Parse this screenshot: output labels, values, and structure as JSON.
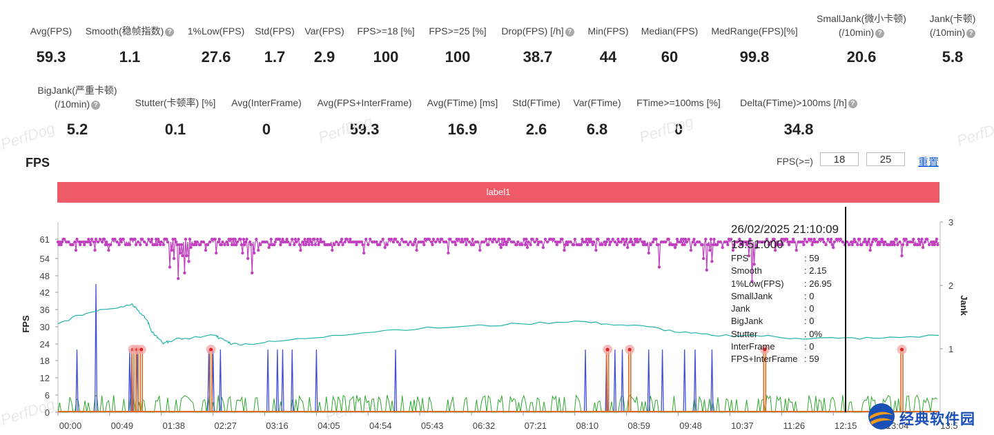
{
  "stats_row1": [
    {
      "label": "Avg(FPS)",
      "value": "59.3",
      "help": false
    },
    {
      "label": "Smooth(稳帧指数)",
      "value": "1.1",
      "help": true
    },
    {
      "label": "1%Low(FPS)",
      "value": "27.6",
      "help": false
    },
    {
      "label": "Std(FPS)",
      "value": "1.7",
      "help": false
    },
    {
      "label": "Var(FPS)",
      "value": "2.9",
      "help": false
    },
    {
      "label": "FPS>=18 [%]",
      "value": "100",
      "help": false
    },
    {
      "label": "FPS>=25 [%]",
      "value": "100",
      "help": false
    },
    {
      "label": "Drop(FPS) [/h]",
      "value": "38.7",
      "help": true
    },
    {
      "label": "Min(FPS)",
      "value": "44",
      "help": false
    },
    {
      "label": "Median(FPS)",
      "value": "60",
      "help": false
    },
    {
      "label": "MedRange(FPS)[%]",
      "value": "99.8",
      "help": false
    },
    {
      "label": "SmallJank(微小卡顿)",
      "label2": "(/10min)",
      "value": "20.6",
      "help": true
    },
    {
      "label": "Jank(卡顿)",
      "label2": "(/10min)",
      "value": "5.8",
      "help": true
    }
  ],
  "stats_row2": [
    {
      "label": "BigJank(严重卡顿)",
      "label2": "(/10min)",
      "value": "5.2",
      "help": true
    },
    {
      "label": "Stutter(卡顿率) [%]",
      "value": "0.1",
      "help": false
    },
    {
      "label": "Avg(InterFrame)",
      "value": "0",
      "help": false
    },
    {
      "label": "Avg(FPS+InterFrame)",
      "value": "59.3",
      "help": false
    },
    {
      "label": "Avg(FTime) [ms]",
      "value": "16.9",
      "help": false
    },
    {
      "label": "Std(FTime)",
      "value": "2.6",
      "help": false
    },
    {
      "label": "Var(FTime)",
      "value": "6.8",
      "help": false
    },
    {
      "label": "FTime>=100ms [%]",
      "value": "0",
      "help": false
    },
    {
      "label": "Delta(FTime)>100ms [/h]",
      "value": "34.8",
      "help": true
    }
  ],
  "watermark": "PerfDog",
  "section_title": "FPS",
  "threshold": {
    "label": "FPS(>=)",
    "value1": "18",
    "value2": "25",
    "reset": "重置"
  },
  "label_bar": "label1",
  "tooltip": {
    "timestamp": "26/02/2025 21:10:09",
    "time": "13:51:000",
    "rows": [
      {
        "k": "FPS",
        "v": ": 59"
      },
      {
        "k": "Smooth",
        "v": ": 2.15"
      },
      {
        "k": "1%Low(FPS)",
        "v": ": 26.95"
      },
      {
        "k": "SmallJank",
        "v": ": 0"
      },
      {
        "k": "Jank",
        "v": ": 0"
      },
      {
        "k": "BigJank",
        "v": ": 0"
      },
      {
        "k": "Stutter",
        "v": ": 0%"
      },
      {
        "k": "InterFrame",
        "v": ": 0"
      },
      {
        "k": "FPS+InterFrame",
        "v": ": 59"
      }
    ]
  },
  "logo_text": "经典软件园",
  "chart_data": {
    "type": "line",
    "xlabel": "",
    "ylabel": "FPS",
    "y2label": "Jank",
    "x_unit": "seconds",
    "xlim": [
      0,
      835
    ],
    "ylim": [
      0,
      64
    ],
    "y2lim": [
      0,
      3
    ],
    "y_ticks": [
      0,
      6,
      12,
      18,
      24,
      30,
      36,
      42,
      48,
      54,
      61
    ],
    "y2_ticks": [
      1,
      2,
      3
    ],
    "x_ticks": [
      "00:00",
      "00:49",
      "01:38",
      "02:27",
      "03:16",
      "04:05",
      "04:54",
      "05:43",
      "06:32",
      "07:21",
      "08:10",
      "08:59",
      "09:48",
      "10:37",
      "11:26",
      "12:15",
      "13:04",
      "13:5"
    ],
    "cursor_time": "13:51",
    "series": [
      {
        "name": "FPS",
        "color": "#c040c0",
        "baseline": 60,
        "dips": [
          [
            5,
            61
          ],
          [
            13,
            59
          ],
          [
            17,
            57
          ],
          [
            35,
            57
          ],
          [
            48,
            57
          ],
          [
            62,
            61
          ],
          [
            95,
            61
          ],
          [
            106,
            51
          ],
          [
            108,
            57
          ],
          [
            110,
            54
          ],
          [
            112,
            60
          ],
          [
            114,
            47
          ],
          [
            116,
            56
          ],
          [
            118,
            55
          ],
          [
            120,
            49
          ],
          [
            122,
            55
          ],
          [
            124,
            53
          ],
          [
            126,
            58
          ],
          [
            140,
            57
          ],
          [
            150,
            56
          ],
          [
            155,
            59
          ],
          [
            165,
            59
          ],
          [
            175,
            56
          ],
          [
            180,
            54
          ],
          [
            182,
            60
          ],
          [
            184,
            49
          ],
          [
            186,
            56
          ],
          [
            190,
            57
          ],
          [
            200,
            58
          ],
          [
            210,
            61
          ],
          [
            230,
            57
          ],
          [
            260,
            57
          ],
          [
            290,
            56
          ],
          [
            310,
            58
          ],
          [
            340,
            57
          ],
          [
            370,
            56
          ],
          [
            400,
            57
          ],
          [
            420,
            58
          ],
          [
            445,
            58
          ],
          [
            460,
            58
          ],
          [
            480,
            57
          ],
          [
            510,
            57
          ],
          [
            540,
            58
          ],
          [
            560,
            56
          ],
          [
            570,
            51
          ],
          [
            585,
            58
          ],
          [
            600,
            57
          ],
          [
            612,
            54
          ],
          [
            615,
            50
          ],
          [
            618,
            57
          ],
          [
            620,
            53
          ],
          [
            630,
            58
          ],
          [
            640,
            57
          ],
          [
            655,
            55
          ],
          [
            658,
            46
          ],
          [
            660,
            52
          ],
          [
            662,
            58
          ],
          [
            670,
            60
          ],
          [
            680,
            57
          ],
          [
            700,
            57
          ],
          [
            735,
            58
          ],
          [
            770,
            57
          ],
          [
            800,
            55
          ],
          [
            820,
            58
          ]
        ]
      },
      {
        "name": "Smooth",
        "color": "#20b2aa",
        "points": [
          [
            0,
            31
          ],
          [
            20,
            34
          ],
          [
            40,
            36
          ],
          [
            60,
            37
          ],
          [
            70,
            38
          ],
          [
            73,
            37
          ],
          [
            80,
            34
          ],
          [
            85,
            32
          ],
          [
            88,
            29
          ],
          [
            92,
            27
          ],
          [
            95,
            26
          ],
          [
            100,
            24
          ],
          [
            105,
            25
          ],
          [
            120,
            26
          ],
          [
            150,
            27
          ],
          [
            153,
            26
          ],
          [
            160,
            25
          ],
          [
            165,
            24
          ],
          [
            180,
            24
          ],
          [
            210,
            25
          ],
          [
            260,
            27
          ],
          [
            320,
            29
          ],
          [
            380,
            30
          ],
          [
            440,
            31
          ],
          [
            490,
            32
          ],
          [
            520,
            31
          ],
          [
            560,
            30
          ],
          [
            590,
            28
          ],
          [
            620,
            27
          ],
          [
            660,
            27
          ],
          [
            700,
            26
          ],
          [
            740,
            26
          ],
          [
            780,
            26
          ],
          [
            835,
            27
          ]
        ]
      },
      {
        "name": "SmallJank",
        "color": "#4050d8",
        "spikes": [
          [
            18,
            22
          ],
          [
            36,
            45
          ],
          [
            68,
            22
          ],
          [
            70,
            22
          ],
          [
            75,
            22
          ],
          [
            143,
            22
          ],
          [
            147,
            22
          ],
          [
            154,
            22
          ],
          [
            199,
            22
          ],
          [
            208,
            22
          ],
          [
            213,
            22
          ],
          [
            222,
            22
          ],
          [
            245,
            22
          ],
          [
            320,
            22
          ],
          [
            500,
            22
          ],
          [
            520,
            22
          ],
          [
            528,
            22
          ],
          [
            535,
            22
          ],
          [
            560,
            22
          ],
          [
            573,
            22
          ],
          [
            594,
            22
          ],
          [
            604,
            22
          ],
          [
            620,
            22
          ]
        ]
      },
      {
        "name": "Jank",
        "color": "#e06a20",
        "spikes": [
          [
            71,
            22
          ],
          [
            75,
            22
          ],
          [
            79,
            22
          ],
          [
            145,
            22
          ],
          [
            521,
            22
          ],
          [
            542,
            22
          ],
          [
            670,
            22
          ],
          [
            800,
            22
          ]
        ]
      },
      {
        "name": "InterFrame",
        "color": "#2fa82f",
        "noise_max": 6
      }
    ]
  }
}
